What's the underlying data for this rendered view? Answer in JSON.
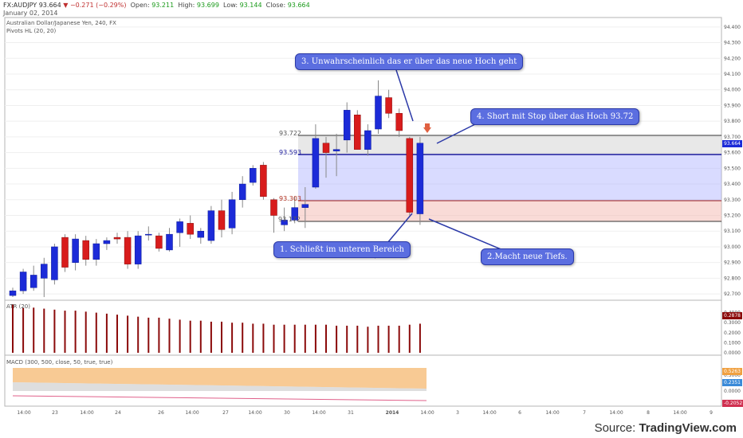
{
  "header": {
    "symbol": "FX:AUDJPY",
    "last": "93.664",
    "change": "−0.271 (−0.29%)",
    "open_label": "Open:",
    "open": "93.211",
    "high_label": "High:",
    "high": "93.699",
    "low_label": "Low:",
    "low": "93.144",
    "close_label": "Close:",
    "close": "93.664",
    "date": "January 02, 2014"
  },
  "indicators": {
    "instrument": "Australian Dollar/Japanese Yen, 240, FX",
    "pivots": "Pivots HL (20, 20)",
    "atr": "ATR (20)",
    "macd": "MACD (300, 500, close, 50, true, true)"
  },
  "levels": {
    "top": "93.722",
    "mid": "93.593",
    "low": "93.303",
    "bottom": "93.172"
  },
  "callouts": {
    "c1": "1. Schließt im unteren Bereich",
    "c2": "2.Macht neue Tiefs.",
    "c3": "3. Unwahrscheinlich das er über das neue Hoch geht",
    "c4": "4. Short mit Stop über das Hoch 93.72"
  },
  "price_axis": [
    "94.400",
    "94.300",
    "94.200",
    "94.100",
    "94.000",
    "93.900",
    "93.800",
    "93.700",
    "93.600",
    "93.500",
    "93.400",
    "93.300",
    "93.200",
    "93.100",
    "93.000",
    "92.900",
    "92.800",
    "92.700"
  ],
  "price_badge": "93.664",
  "atr_axis": [
    "0.4000",
    "0.3000",
    "0.2000",
    "0.1000",
    "0.0000"
  ],
  "atr_badge": "0.2878",
  "macd_axis": [
    "0.5000",
    "0.0000"
  ],
  "macd_badges": [
    "0.5263",
    "0.2351",
    "-0.2052"
  ],
  "time_axis": [
    "14:00",
    "23",
    "14:00",
    "24",
    "26",
    "14:00",
    "27",
    "14:00",
    "30",
    "14:00",
    "31",
    "2014",
    "14:00",
    "3",
    "14:00",
    "6",
    "14:00",
    "7",
    "14:00",
    "8",
    "14:00",
    "9"
  ],
  "source_prefix": "Source: ",
  "source_brand": "TradingView.com",
  "colors": {
    "bull": "#1c2bd8",
    "bear": "#d81c1c",
    "atr": "#8b0a0a",
    "callout": "#5b6ee0"
  },
  "chart_data": {
    "type": "candlestick",
    "title": "Australian Dollar/Japanese Yen, 240, FX",
    "y_range": [
      92.66,
      94.46
    ],
    "candles": [
      {
        "o": 92.69,
        "h": 92.74,
        "l": 92.68,
        "c": 92.72
      },
      {
        "o": 92.72,
        "h": 92.86,
        "l": 92.7,
        "c": 92.84
      },
      {
        "o": 92.74,
        "h": 92.88,
        "l": 92.72,
        "c": 92.82
      },
      {
        "o": 92.8,
        "h": 92.93,
        "l": 92.68,
        "c": 92.89
      },
      {
        "o": 92.79,
        "h": 93.02,
        "l": 92.76,
        "c": 93.0
      },
      {
        "o": 93.06,
        "h": 93.08,
        "l": 92.84,
        "c": 92.87
      },
      {
        "o": 92.9,
        "h": 93.08,
        "l": 92.85,
        "c": 93.05
      },
      {
        "o": 93.04,
        "h": 93.07,
        "l": 92.88,
        "c": 92.92
      },
      {
        "o": 92.92,
        "h": 93.05,
        "l": 92.88,
        "c": 93.02
      },
      {
        "o": 93.02,
        "h": 93.06,
        "l": 92.98,
        "c": 93.04
      },
      {
        "o": 93.06,
        "h": 93.09,
        "l": 93.02,
        "c": 93.05
      },
      {
        "o": 93.06,
        "h": 93.1,
        "l": 92.86,
        "c": 92.89
      },
      {
        "o": 92.89,
        "h": 93.1,
        "l": 92.86,
        "c": 93.07
      },
      {
        "o": 93.08,
        "h": 93.13,
        "l": 93.04,
        "c": 93.08
      },
      {
        "o": 93.07,
        "h": 93.09,
        "l": 92.97,
        "c": 92.99
      },
      {
        "o": 92.98,
        "h": 93.12,
        "l": 92.97,
        "c": 93.08
      },
      {
        "o": 93.09,
        "h": 93.18,
        "l": 93.0,
        "c": 93.16
      },
      {
        "o": 93.15,
        "h": 93.2,
        "l": 93.05,
        "c": 93.08
      },
      {
        "o": 93.06,
        "h": 93.12,
        "l": 93.02,
        "c": 93.1
      },
      {
        "o": 93.04,
        "h": 93.26,
        "l": 93.02,
        "c": 93.23
      },
      {
        "o": 93.23,
        "h": 93.3,
        "l": 93.06,
        "c": 93.11
      },
      {
        "o": 93.12,
        "h": 93.35,
        "l": 93.08,
        "c": 93.3
      },
      {
        "o": 93.3,
        "h": 93.45,
        "l": 93.25,
        "c": 93.4
      },
      {
        "o": 93.41,
        "h": 93.52,
        "l": 93.39,
        "c": 93.5
      },
      {
        "o": 93.52,
        "h": 93.54,
        "l": 93.3,
        "c": 93.32
      },
      {
        "o": 93.3,
        "h": 93.31,
        "l": 93.09,
        "c": 93.2
      },
      {
        "o": 93.14,
        "h": 93.25,
        "l": 93.1,
        "c": 93.17
      },
      {
        "o": 93.17,
        "h": 93.32,
        "l": 93.15,
        "c": 93.25
      },
      {
        "o": 93.25,
        "h": 93.38,
        "l": 93.12,
        "c": 93.27
      },
      {
        "o": 93.38,
        "h": 93.78,
        "l": 93.37,
        "c": 93.69
      },
      {
        "o": 93.66,
        "h": 93.7,
        "l": 93.44,
        "c": 93.6
      },
      {
        "o": 93.61,
        "h": 93.72,
        "l": 93.45,
        "c": 93.62
      },
      {
        "o": 93.68,
        "h": 93.92,
        "l": 93.6,
        "c": 93.87
      },
      {
        "o": 93.84,
        "h": 93.87,
        "l": 93.62,
        "c": 93.62
      },
      {
        "o": 93.62,
        "h": 93.78,
        "l": 93.58,
        "c": 93.74
      },
      {
        "o": 93.75,
        "h": 94.06,
        "l": 93.72,
        "c": 93.96
      },
      {
        "o": 93.95,
        "h": 94.0,
        "l": 93.82,
        "c": 93.85
      },
      {
        "o": 93.85,
        "h": 93.88,
        "l": 93.7,
        "c": 93.74
      },
      {
        "o": 93.69,
        "h": 93.7,
        "l": 93.2,
        "c": 93.22
      },
      {
        "o": 93.21,
        "h": 93.7,
        "l": 93.14,
        "c": 93.66
      }
    ],
    "atr": [
      0.48,
      0.45,
      0.45,
      0.44,
      0.43,
      0.42,
      0.42,
      0.41,
      0.4,
      0.39,
      0.38,
      0.37,
      0.36,
      0.35,
      0.35,
      0.34,
      0.33,
      0.32,
      0.32,
      0.31,
      0.31,
      0.3,
      0.3,
      0.29,
      0.29,
      0.28,
      0.28,
      0.28,
      0.28,
      0.28,
      0.28,
      0.27,
      0.27,
      0.27,
      0.26,
      0.27,
      0.27,
      0.27,
      0.28,
      0.29
    ],
    "atr_range": [
      0,
      0.5
    ]
  }
}
